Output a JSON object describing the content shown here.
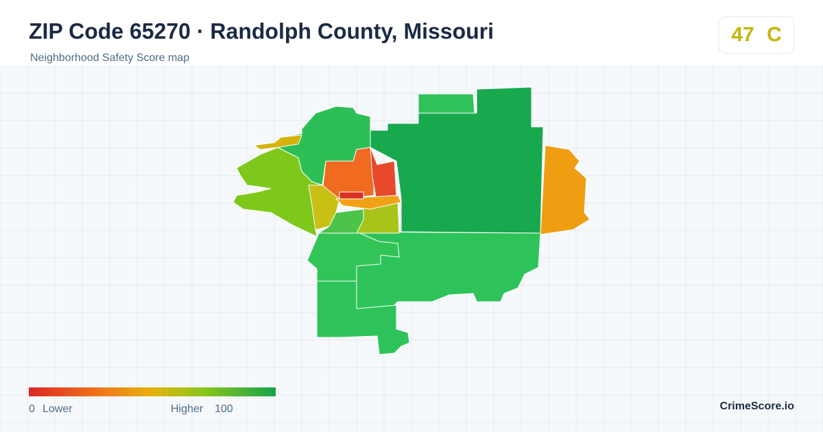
{
  "header": {
    "title": "ZIP Code 65270 · Randolph County, Missouri",
    "subtitle": "Neighborhood Safety Score map"
  },
  "score": {
    "value": 47,
    "grade": "C"
  },
  "legend": {
    "min": 0,
    "min_label": "Lower",
    "max_label": "Higher",
    "max": 100
  },
  "brand": "CrimeScore.io"
}
